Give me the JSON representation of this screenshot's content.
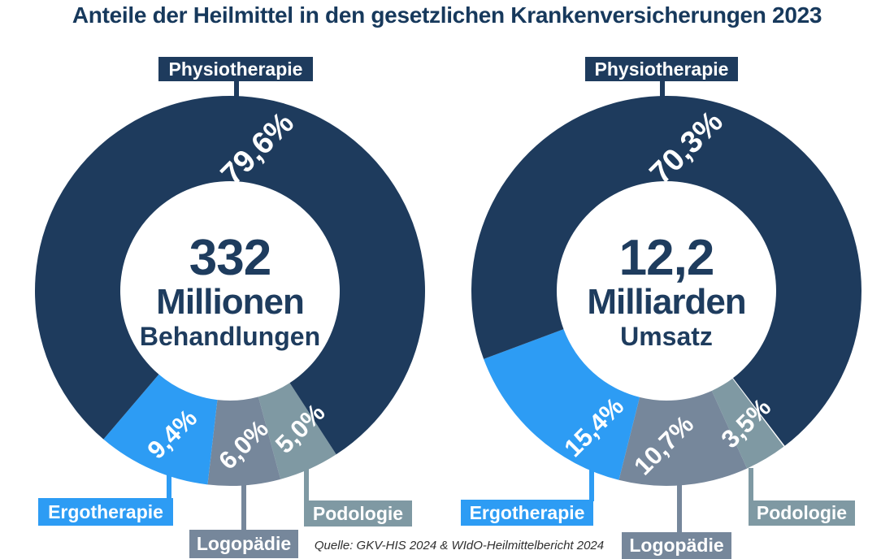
{
  "title": "Anteile der Heilmittel in den gesetzlichen Krankenversicherungen 2023",
  "source": "Quelle: GKV-HIS 2024 & WIdO-Heilmittelbericht 2024",
  "colors": {
    "physiotherapie": "#1E3B5D",
    "ergotherapie": "#2D9CF4",
    "logopaedie": "#76879B",
    "podologie": "#7F99A3",
    "title_text": "#17395C",
    "center_text": "#1E3C5E",
    "percent_text": "#FFFFFF",
    "source_text": "#2F2F2F",
    "background": "#FFFFFF"
  },
  "chart_data": [
    {
      "type": "pie",
      "variant": "donut",
      "name": "Behandlungen",
      "center_value": "332",
      "center_unit": "Millionen",
      "center_sublabel": "Behandlungen",
      "categories": [
        "Physiotherapie",
        "Ergotherapie",
        "Logopädie",
        "Podologie"
      ],
      "values": [
        79.6,
        9.4,
        6.0,
        5.0
      ],
      "value_labels": [
        "79,6%",
        "9,4%",
        "6,0%",
        "5,0%"
      ],
      "unit": "percent",
      "segment_colors": [
        "#1E3B5D",
        "#2D9CF4",
        "#76879B",
        "#7F99A3"
      ],
      "layout": {
        "start_angle_deg": 147,
        "clockwise_order": [
          "Podologie",
          "Logopädie",
          "Ergotherapie",
          "Physiotherapie"
        ],
        "label_angles_deg": [
          11,
          202,
          175,
          153
        ]
      }
    },
    {
      "type": "pie",
      "variant": "donut",
      "name": "Umsatz",
      "center_value": "12,2",
      "center_unit": "Milliarden",
      "center_sublabel": "Umsatz",
      "categories": [
        "Physiotherapie",
        "Ergotherapie",
        "Logopädie",
        "Podologie"
      ],
      "values": [
        70.3,
        15.4,
        10.7,
        3.5
      ],
      "value_labels": [
        "70,3%",
        "15,4%",
        "10,7%",
        "3,5%"
      ],
      "unit": "percent",
      "segment_colors": [
        "#1E3B5D",
        "#2D9CF4",
        "#76879B",
        "#7F99A3"
      ],
      "layout": {
        "start_angle_deg": 143,
        "clockwise_order": [
          "Podologie",
          "Logopädie",
          "Ergotherapie",
          "Physiotherapie"
        ],
        "label_angles_deg": [
          8,
          208,
          181,
          149
        ]
      }
    }
  ]
}
